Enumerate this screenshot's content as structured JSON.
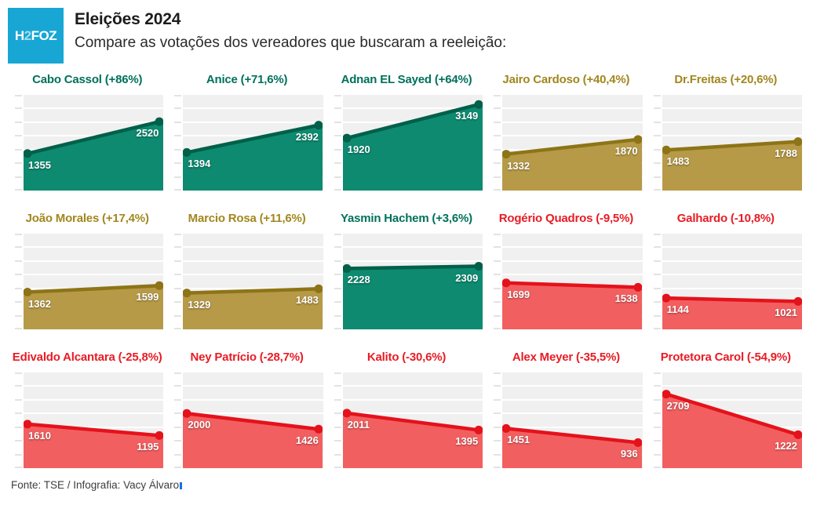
{
  "header": {
    "logo": {
      "part1": "H",
      "part2": "2",
      "part3": "FOZ"
    },
    "title": "Eleições 2024",
    "subtitle": "Compare as votações dos vereadores que buscaram a reeleição:"
  },
  "footer": {
    "source": "Fonte: TSE / Infografia: Vacy Álvaro"
  },
  "colors": {
    "accent_cyan": "#18a7d4",
    "plot_background": "#f0f0f0",
    "gridline": "#ffffff",
    "green": {
      "title": "#00715a",
      "line": "#006049",
      "fill": "#0e8a70"
    },
    "gold": {
      "title": "#a1871e",
      "line": "#8d7417",
      "fill": "#b69a48"
    },
    "red": {
      "title": "#e81c24",
      "line": "#e4121b",
      "fill": "#f25f60"
    }
  },
  "chart_config": {
    "type": "area",
    "ymin": 0,
    "ymax": 3500,
    "gridline_step": 500,
    "grid": true,
    "points_per_chart": 2
  },
  "chart_data": [
    {
      "type": "area",
      "title": "Cabo Cassol (+86%)",
      "name": "Cabo Cassol",
      "change": "+86%",
      "color": "green",
      "values": [
        1355,
        2520
      ]
    },
    {
      "type": "area",
      "title": "Anice (+71,6%)",
      "name": "Anice",
      "change": "+71,6%",
      "color": "green",
      "values": [
        1394,
        2392
      ]
    },
    {
      "type": "area",
      "title": "Adnan EL Sayed (+64%)",
      "name": "Adnan EL Sayed",
      "change": "+64%",
      "color": "green",
      "values": [
        1920,
        3149
      ]
    },
    {
      "type": "area",
      "title": "Jairo Cardoso (+40,4%)",
      "name": "Jairo Cardoso",
      "change": "+40,4%",
      "color": "gold",
      "values": [
        1332,
        1870
      ]
    },
    {
      "type": "area",
      "title": "Dr.Freitas (+20,6%)",
      "name": "Dr.Freitas",
      "change": "+20,6%",
      "color": "gold",
      "values": [
        1483,
        1788
      ]
    },
    {
      "type": "area",
      "title": "João Morales (+17,4%)",
      "name": "João Morales",
      "change": "+17,4%",
      "color": "gold",
      "values": [
        1362,
        1599
      ]
    },
    {
      "type": "area",
      "title": "Marcio Rosa (+11,6%)",
      "name": "Marcio Rosa",
      "change": "+11,6%",
      "color": "gold",
      "values": [
        1329,
        1483
      ]
    },
    {
      "type": "area",
      "title": "Yasmin Hachem (+3,6%)",
      "name": "Yasmin Hachem",
      "change": "+3,6%",
      "color": "green",
      "values": [
        2228,
        2309
      ]
    },
    {
      "type": "area",
      "title": "Rogério Quadros (-9,5%)",
      "name": "Rogério Quadros",
      "change": "-9,5%",
      "color": "red",
      "values": [
        1699,
        1538
      ]
    },
    {
      "type": "area",
      "title": "Galhardo (-10,8%)",
      "name": "Galhardo",
      "change": "-10,8%",
      "color": "red",
      "values": [
        1144,
        1021
      ]
    },
    {
      "type": "area",
      "title": "Edivaldo Alcantara (-25,8%)",
      "name": "Edivaldo Alcantara",
      "change": "-25,8%",
      "color": "red",
      "values": [
        1610,
        1195
      ]
    },
    {
      "type": "area",
      "title": "Ney Patrício (-28,7%)",
      "name": "Ney Patrício",
      "change": "-28,7%",
      "color": "red",
      "values": [
        2000,
        1426
      ]
    },
    {
      "type": "area",
      "title": "Kalito (-30,6%)",
      "name": "Kalito",
      "change": "-30,6%",
      "color": "red",
      "values": [
        2011,
        1395
      ]
    },
    {
      "type": "area",
      "title": "Alex Meyer (-35,5%)",
      "name": "Alex Meyer",
      "change": "-35,5%",
      "color": "red",
      "values": [
        1451,
        936
      ]
    },
    {
      "type": "area",
      "title": "Protetora Carol (-54,9%)",
      "name": "Protetora Carol",
      "change": "-54,9%",
      "color": "red",
      "values": [
        2709,
        1222
      ]
    }
  ]
}
